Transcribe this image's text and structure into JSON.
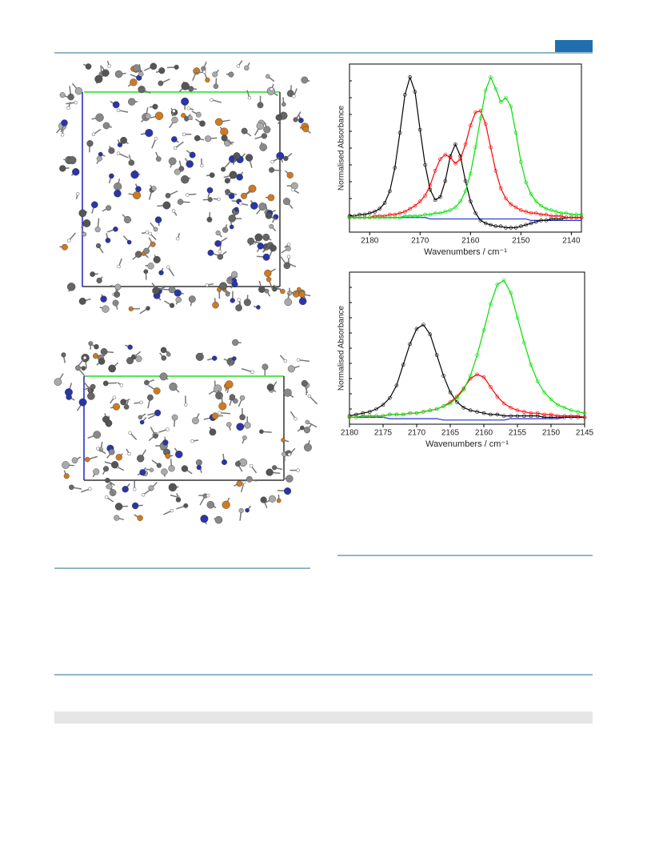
{
  "chart_data": [
    {
      "type": "line",
      "y_label": "Normalised Absorbance",
      "x_label": "Wavenumbers / cm⁻¹",
      "xlim": [
        2184,
        2138
      ],
      "xticks": [
        2180,
        2170,
        2160,
        2150,
        2140
      ],
      "ylim": [
        -0.1,
        1.05
      ],
      "x": [
        2184,
        2183,
        2182,
        2181,
        2180,
        2179,
        2178,
        2177,
        2176,
        2175,
        2174,
        2173,
        2172,
        2171,
        2170,
        2169,
        2168,
        2167,
        2166,
        2165,
        2164,
        2163,
        2162,
        2161,
        2160,
        2159,
        2158,
        2157,
        2156,
        2155,
        2154,
        2153,
        2152,
        2151,
        2150,
        2149,
        2148,
        2147,
        2146,
        2145,
        2144,
        2143,
        2142,
        2141,
        2140,
        2139,
        2138
      ],
      "series": [
        {
          "color": "#000000",
          "marker": "circle",
          "values": [
            0.01,
            0.01,
            0.02,
            0.02,
            0.03,
            0.04,
            0.06,
            0.1,
            0.18,
            0.34,
            0.58,
            0.84,
            0.96,
            0.86,
            0.6,
            0.36,
            0.19,
            0.12,
            0.14,
            0.25,
            0.42,
            0.5,
            0.42,
            0.25,
            0.11,
            0.03,
            -0.02,
            -0.04,
            -0.05,
            -0.06,
            -0.06,
            -0.07,
            -0.07,
            -0.07,
            -0.06,
            -0.05,
            -0.04,
            -0.03,
            -0.02,
            -0.02,
            -0.01,
            -0.01,
            -0.01,
            0.0,
            0.0,
            0.0,
            0.0
          ]
        },
        {
          "color": "#ff0000",
          "marker": "circle",
          "values": [
            0.0,
            0.0,
            0.0,
            0.0,
            0.0,
            0.01,
            0.01,
            0.01,
            0.02,
            0.02,
            0.03,
            0.04,
            0.06,
            0.08,
            0.11,
            0.15,
            0.22,
            0.32,
            0.4,
            0.43,
            0.41,
            0.37,
            0.4,
            0.5,
            0.63,
            0.72,
            0.73,
            0.64,
            0.48,
            0.32,
            0.2,
            0.13,
            0.09,
            0.07,
            0.05,
            0.04,
            0.03,
            0.03,
            0.02,
            0.02,
            0.01,
            0.01,
            0.01,
            0.0,
            0.0,
            0.0,
            0.0
          ]
        },
        {
          "color": "#00e000",
          "marker": "circle",
          "values": [
            0.0,
            0.0,
            0.0,
            0.0,
            0.0,
            0.0,
            0.0,
            0.0,
            0.0,
            0.0,
            0.0,
            0.01,
            0.01,
            0.01,
            0.01,
            0.02,
            0.02,
            0.03,
            0.03,
            0.04,
            0.05,
            0.07,
            0.11,
            0.18,
            0.3,
            0.48,
            0.68,
            0.87,
            0.96,
            0.88,
            0.79,
            0.82,
            0.76,
            0.58,
            0.38,
            0.24,
            0.16,
            0.11,
            0.08,
            0.06,
            0.05,
            0.04,
            0.03,
            0.03,
            0.02,
            0.02,
            0.02
          ]
        },
        {
          "color": "#2030d0",
          "values": [
            0.0,
            0.0,
            0.0,
            0.0,
            0.0,
            0.0,
            0.0,
            0.0,
            0.0,
            0.0,
            0.0,
            0.0,
            0.0,
            0.0,
            0.0,
            0.0,
            -0.01,
            -0.01,
            -0.01,
            -0.01,
            -0.01,
            -0.01,
            -0.01,
            -0.01,
            -0.01,
            -0.01,
            -0.01,
            -0.01,
            -0.01,
            -0.01,
            -0.01,
            -0.01,
            -0.01,
            -0.01,
            -0.01,
            -0.01,
            -0.02,
            -0.02,
            -0.02,
            -0.02,
            -0.02,
            -0.02,
            -0.02,
            -0.02,
            -0.02,
            -0.02,
            -0.02
          ]
        }
      ]
    },
    {
      "type": "line",
      "y_label": "Normalised Absorbance",
      "x_label": "Wavenumbers / cm⁻¹",
      "xlim": [
        2180,
        2145
      ],
      "xticks": [
        2180,
        2175,
        2170,
        2165,
        2160,
        2155,
        2150,
        2145
      ],
      "ylim": [
        -0.05,
        1.05
      ],
      "x": [
        2180,
        2179,
        2178,
        2177,
        2176,
        2175,
        2174,
        2173,
        2172,
        2171,
        2170,
        2169,
        2168,
        2167,
        2166,
        2165,
        2164,
        2163,
        2162,
        2161,
        2160,
        2159,
        2158,
        2157,
        2156,
        2155,
        2154,
        2153,
        2152,
        2151,
        2150,
        2149,
        2148,
        2147,
        2146,
        2145
      ],
      "series": [
        {
          "color": "#000000",
          "marker": "circle",
          "values": [
            0.01,
            0.02,
            0.03,
            0.04,
            0.06,
            0.09,
            0.14,
            0.23,
            0.38,
            0.53,
            0.64,
            0.67,
            0.6,
            0.45,
            0.3,
            0.18,
            0.11,
            0.07,
            0.05,
            0.04,
            0.03,
            0.02,
            0.02,
            0.01,
            0.01,
            0.01,
            0.01,
            0.01,
            0.01,
            0.0,
            0.0,
            0.0,
            0.0,
            0.0,
            0.0,
            0.0
          ]
        },
        {
          "color": "#ff0000",
          "marker": "circle",
          "values": [
            0.0,
            0.0,
            0.01,
            0.01,
            0.01,
            0.01,
            0.02,
            0.02,
            0.02,
            0.03,
            0.03,
            0.04,
            0.05,
            0.06,
            0.08,
            0.11,
            0.15,
            0.21,
            0.28,
            0.31,
            0.29,
            0.22,
            0.15,
            0.1,
            0.07,
            0.05,
            0.04,
            0.03,
            0.03,
            0.02,
            0.02,
            0.01,
            0.01,
            0.01,
            0.01,
            0.0
          ]
        },
        {
          "color": "#00e000",
          "marker": "circle",
          "values": [
            0.0,
            0.0,
            0.01,
            0.01,
            0.01,
            0.01,
            0.02,
            0.02,
            0.02,
            0.03,
            0.03,
            0.04,
            0.05,
            0.06,
            0.08,
            0.1,
            0.14,
            0.2,
            0.3,
            0.45,
            0.63,
            0.82,
            0.96,
            0.99,
            0.9,
            0.72,
            0.54,
            0.38,
            0.26,
            0.18,
            0.13,
            0.09,
            0.07,
            0.05,
            0.04,
            0.03
          ]
        },
        {
          "color": "#2030d0",
          "values": [
            0.0,
            0.0,
            0.0,
            0.0,
            0.0,
            0.0,
            -0.01,
            -0.01,
            -0.01,
            -0.01,
            -0.01,
            -0.01,
            -0.01,
            -0.01,
            -0.02,
            -0.02,
            -0.02,
            -0.02,
            -0.02,
            -0.02,
            -0.02,
            -0.02,
            -0.02,
            -0.02,
            -0.01,
            -0.01,
            -0.01,
            -0.01,
            -0.01,
            -0.01,
            -0.01,
            -0.01,
            0.0,
            0.0,
            0.0,
            0.0
          ]
        }
      ]
    }
  ]
}
